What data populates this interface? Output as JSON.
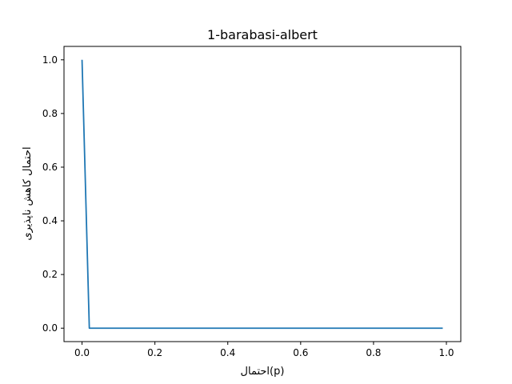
{
  "chart_data": {
    "type": "line",
    "title": "1-barabasi-albert",
    "xlabel": "احتمال(p)",
    "ylabel": "احتمال کاهش ناپذیری",
    "xlim": [
      -0.0495,
      1.0395
    ],
    "ylim": [
      -0.05,
      1.05
    ],
    "x_ticks": [
      0.0,
      0.2,
      0.4,
      0.6,
      0.8,
      1.0
    ],
    "x_tick_labels": [
      "0.0",
      "0.2",
      "0.4",
      "0.6",
      "0.8",
      "1.0"
    ],
    "y_ticks": [
      0.0,
      0.2,
      0.4,
      0.6,
      0.8,
      1.0
    ],
    "y_tick_labels": [
      "0.0",
      "0.2",
      "0.4",
      "0.6",
      "0.8",
      "1.0"
    ],
    "grid": false,
    "series": [
      {
        "color": "#1f77b4",
        "x": [
          0.0,
          0.02,
          0.99
        ],
        "y": [
          1.0,
          0.0,
          0.0
        ]
      }
    ]
  }
}
